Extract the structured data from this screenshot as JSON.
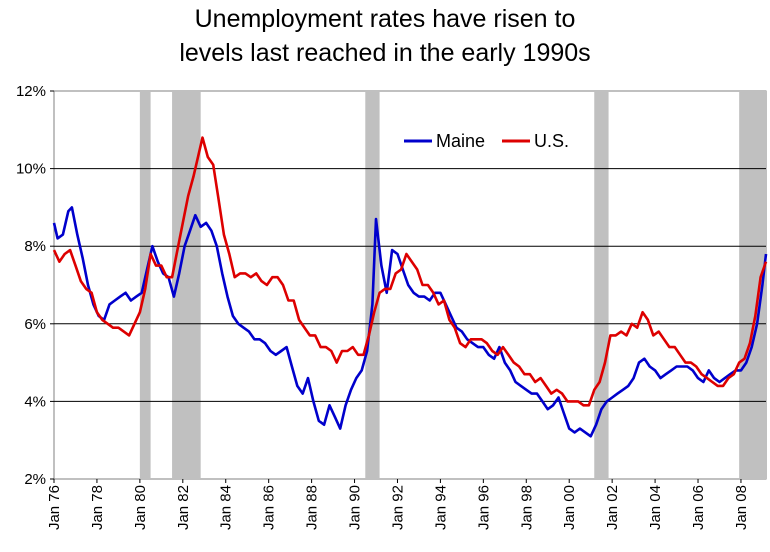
{
  "chart_data": {
    "type": "line",
    "title_lines": [
      "Unemployment rates have risen to",
      "levels last reached in the early 1990s"
    ],
    "xlabel": "",
    "ylabel": "",
    "x_range": [
      "1976-01",
      "2009-03"
    ],
    "ylim": [
      2,
      12
    ],
    "y_ticks": [
      2,
      4,
      6,
      8,
      10,
      12
    ],
    "y_tick_labels": [
      "2%",
      "4%",
      "6%",
      "8%",
      "10%",
      "12%"
    ],
    "x_tick_labels": [
      "Jan 76",
      "Jan 78",
      "Jan 80",
      "Jan 82",
      "Jan 84",
      "Jan 86",
      "Jan 88",
      "Jan 90",
      "Jan 92",
      "Jan 94",
      "Jan 96",
      "Jan 98",
      "Jan 00",
      "Jan 02",
      "Jan 04",
      "Jan 06",
      "Jan 08"
    ],
    "grid": "horizontal",
    "legend_position": "top-center",
    "recessions": [
      {
        "start": "1980-01",
        "end": "1980-07"
      },
      {
        "start": "1981-07",
        "end": "1982-11"
      },
      {
        "start": "1990-07",
        "end": "1991-03"
      },
      {
        "start": "2001-03",
        "end": "2001-11"
      },
      {
        "start": "2007-12",
        "end": "2009-03"
      }
    ],
    "recession_color": "#c0c0c0",
    "series": [
      {
        "name": "Maine",
        "color": "#0000cc",
        "points": [
          [
            "1976-01",
            8.6
          ],
          [
            "1976-03",
            8.2
          ],
          [
            "1976-06",
            8.3
          ],
          [
            "1976-09",
            8.9
          ],
          [
            "1976-11",
            9.0
          ],
          [
            "1977-02",
            8.3
          ],
          [
            "1977-05",
            7.7
          ],
          [
            "1977-08",
            7.0
          ],
          [
            "1977-11",
            6.5
          ],
          [
            "1978-02",
            6.2
          ],
          [
            "1978-05",
            6.1
          ],
          [
            "1978-08",
            6.5
          ],
          [
            "1978-11",
            6.6
          ],
          [
            "1979-02",
            6.7
          ],
          [
            "1979-05",
            6.8
          ],
          [
            "1979-08",
            6.6
          ],
          [
            "1979-11",
            6.7
          ],
          [
            "1980-02",
            6.8
          ],
          [
            "1980-05",
            7.4
          ],
          [
            "1980-08",
            8.0
          ],
          [
            "1980-11",
            7.6
          ],
          [
            "1981-02",
            7.3
          ],
          [
            "1981-05",
            7.2
          ],
          [
            "1981-08",
            6.7
          ],
          [
            "1981-11",
            7.3
          ],
          [
            "1982-02",
            8.0
          ],
          [
            "1982-05",
            8.4
          ],
          [
            "1982-08",
            8.8
          ],
          [
            "1982-11",
            8.5
          ],
          [
            "1983-02",
            8.6
          ],
          [
            "1983-05",
            8.4
          ],
          [
            "1983-08",
            8.0
          ],
          [
            "1983-11",
            7.3
          ],
          [
            "1984-02",
            6.7
          ],
          [
            "1984-05",
            6.2
          ],
          [
            "1984-08",
            6.0
          ],
          [
            "1984-11",
            5.9
          ],
          [
            "1985-02",
            5.8
          ],
          [
            "1985-05",
            5.6
          ],
          [
            "1985-08",
            5.6
          ],
          [
            "1985-11",
            5.5
          ],
          [
            "1986-02",
            5.3
          ],
          [
            "1986-05",
            5.2
          ],
          [
            "1986-08",
            5.3
          ],
          [
            "1986-11",
            5.4
          ],
          [
            "1987-02",
            4.9
          ],
          [
            "1987-05",
            4.4
          ],
          [
            "1987-08",
            4.2
          ],
          [
            "1987-11",
            4.6
          ],
          [
            "1988-02",
            4.0
          ],
          [
            "1988-05",
            3.5
          ],
          [
            "1988-08",
            3.4
          ],
          [
            "1988-11",
            3.9
          ],
          [
            "1989-02",
            3.6
          ],
          [
            "1989-05",
            3.3
          ],
          [
            "1989-08",
            3.9
          ],
          [
            "1989-11",
            4.3
          ],
          [
            "1990-02",
            4.6
          ],
          [
            "1990-05",
            4.8
          ],
          [
            "1990-08",
            5.3
          ],
          [
            "1990-11",
            6.5
          ],
          [
            "1991-01",
            8.7
          ],
          [
            "1991-04",
            7.5
          ],
          [
            "1991-07",
            6.8
          ],
          [
            "1991-10",
            7.9
          ],
          [
            "1992-01",
            7.8
          ],
          [
            "1992-04",
            7.4
          ],
          [
            "1992-07",
            7.0
          ],
          [
            "1992-10",
            6.8
          ],
          [
            "1993-01",
            6.7
          ],
          [
            "1993-04",
            6.7
          ],
          [
            "1993-07",
            6.6
          ],
          [
            "1993-10",
            6.8
          ],
          [
            "1994-01",
            6.8
          ],
          [
            "1994-04",
            6.5
          ],
          [
            "1994-07",
            6.2
          ],
          [
            "1994-10",
            5.9
          ],
          [
            "1995-01",
            5.8
          ],
          [
            "1995-04",
            5.6
          ],
          [
            "1995-07",
            5.5
          ],
          [
            "1995-10",
            5.4
          ],
          [
            "1996-01",
            5.4
          ],
          [
            "1996-04",
            5.2
          ],
          [
            "1996-07",
            5.1
          ],
          [
            "1996-10",
            5.4
          ],
          [
            "1997-01",
            5.0
          ],
          [
            "1997-04",
            4.8
          ],
          [
            "1997-07",
            4.5
          ],
          [
            "1997-10",
            4.4
          ],
          [
            "1998-01",
            4.3
          ],
          [
            "1998-04",
            4.2
          ],
          [
            "1998-07",
            4.2
          ],
          [
            "1998-10",
            4.0
          ],
          [
            "1999-01",
            3.8
          ],
          [
            "1999-04",
            3.9
          ],
          [
            "1999-07",
            4.1
          ],
          [
            "1999-10",
            3.7
          ],
          [
            "2000-01",
            3.3
          ],
          [
            "2000-04",
            3.2
          ],
          [
            "2000-07",
            3.3
          ],
          [
            "2000-10",
            3.2
          ],
          [
            "2001-01",
            3.1
          ],
          [
            "2001-04",
            3.4
          ],
          [
            "2001-07",
            3.8
          ],
          [
            "2001-10",
            4.0
          ],
          [
            "2002-01",
            4.1
          ],
          [
            "2002-04",
            4.2
          ],
          [
            "2002-07",
            4.3
          ],
          [
            "2002-10",
            4.4
          ],
          [
            "2003-01",
            4.6
          ],
          [
            "2003-04",
            5.0
          ],
          [
            "2003-07",
            5.1
          ],
          [
            "2003-10",
            4.9
          ],
          [
            "2004-01",
            4.8
          ],
          [
            "2004-04",
            4.6
          ],
          [
            "2004-07",
            4.7
          ],
          [
            "2004-10",
            4.8
          ],
          [
            "2005-01",
            4.9
          ],
          [
            "2005-04",
            4.9
          ],
          [
            "2005-07",
            4.9
          ],
          [
            "2005-10",
            4.8
          ],
          [
            "2006-01",
            4.6
          ],
          [
            "2006-04",
            4.5
          ],
          [
            "2006-07",
            4.8
          ],
          [
            "2006-10",
            4.6
          ],
          [
            "2007-01",
            4.5
          ],
          [
            "2007-04",
            4.6
          ],
          [
            "2007-07",
            4.7
          ],
          [
            "2007-10",
            4.8
          ],
          [
            "2008-01",
            4.8
          ],
          [
            "2008-04",
            5.0
          ],
          [
            "2008-07",
            5.4
          ],
          [
            "2008-10",
            6.0
          ],
          [
            "2009-01",
            7.0
          ],
          [
            "2009-03",
            7.8
          ]
        ]
      },
      {
        "name": "U.S.",
        "color": "#dd0000",
        "points": [
          [
            "1976-01",
            7.9
          ],
          [
            "1976-04",
            7.6
          ],
          [
            "1976-07",
            7.8
          ],
          [
            "1976-10",
            7.9
          ],
          [
            "1977-01",
            7.5
          ],
          [
            "1977-04",
            7.1
          ],
          [
            "1977-07",
            6.9
          ],
          [
            "1977-10",
            6.8
          ],
          [
            "1978-01",
            6.3
          ],
          [
            "1978-04",
            6.1
          ],
          [
            "1978-07",
            6.0
          ],
          [
            "1978-10",
            5.9
          ],
          [
            "1979-01",
            5.9
          ],
          [
            "1979-04",
            5.8
          ],
          [
            "1979-07",
            5.7
          ],
          [
            "1979-10",
            6.0
          ],
          [
            "1980-01",
            6.3
          ],
          [
            "1980-04",
            6.9
          ],
          [
            "1980-07",
            7.8
          ],
          [
            "1980-10",
            7.5
          ],
          [
            "1981-01",
            7.5
          ],
          [
            "1981-04",
            7.2
          ],
          [
            "1981-07",
            7.2
          ],
          [
            "1981-10",
            7.9
          ],
          [
            "1982-01",
            8.6
          ],
          [
            "1982-04",
            9.3
          ],
          [
            "1982-07",
            9.8
          ],
          [
            "1982-10",
            10.4
          ],
          [
            "1982-12",
            10.8
          ],
          [
            "1983-03",
            10.3
          ],
          [
            "1983-06",
            10.1
          ],
          [
            "1983-09",
            9.2
          ],
          [
            "1983-12",
            8.3
          ],
          [
            "1984-03",
            7.8
          ],
          [
            "1984-06",
            7.2
          ],
          [
            "1984-09",
            7.3
          ],
          [
            "1984-12",
            7.3
          ],
          [
            "1985-03",
            7.2
          ],
          [
            "1985-06",
            7.3
          ],
          [
            "1985-09",
            7.1
          ],
          [
            "1985-12",
            7.0
          ],
          [
            "1986-03",
            7.2
          ],
          [
            "1986-06",
            7.2
          ],
          [
            "1986-09",
            7.0
          ],
          [
            "1986-12",
            6.6
          ],
          [
            "1987-03",
            6.6
          ],
          [
            "1987-06",
            6.1
          ],
          [
            "1987-09",
            5.9
          ],
          [
            "1987-12",
            5.7
          ],
          [
            "1988-03",
            5.7
          ],
          [
            "1988-06",
            5.4
          ],
          [
            "1988-09",
            5.4
          ],
          [
            "1988-12",
            5.3
          ],
          [
            "1989-03",
            5.0
          ],
          [
            "1989-06",
            5.3
          ],
          [
            "1989-09",
            5.3
          ],
          [
            "1989-12",
            5.4
          ],
          [
            "1990-03",
            5.2
          ],
          [
            "1990-06",
            5.2
          ],
          [
            "1990-09",
            5.7
          ],
          [
            "1990-12",
            6.3
          ],
          [
            "1991-03",
            6.8
          ],
          [
            "1991-06",
            6.9
          ],
          [
            "1991-09",
            6.9
          ],
          [
            "1991-12",
            7.3
          ],
          [
            "1992-03",
            7.4
          ],
          [
            "1992-06",
            7.8
          ],
          [
            "1992-09",
            7.6
          ],
          [
            "1992-12",
            7.4
          ],
          [
            "1993-03",
            7.0
          ],
          [
            "1993-06",
            7.0
          ],
          [
            "1993-09",
            6.8
          ],
          [
            "1993-12",
            6.5
          ],
          [
            "1994-03",
            6.6
          ],
          [
            "1994-06",
            6.1
          ],
          [
            "1994-09",
            5.9
          ],
          [
            "1994-12",
            5.5
          ],
          [
            "1995-03",
            5.4
          ],
          [
            "1995-06",
            5.6
          ],
          [
            "1995-09",
            5.6
          ],
          [
            "1995-12",
            5.6
          ],
          [
            "1996-03",
            5.5
          ],
          [
            "1996-06",
            5.3
          ],
          [
            "1996-09",
            5.2
          ],
          [
            "1996-12",
            5.4
          ],
          [
            "1997-03",
            5.2
          ],
          [
            "1997-06",
            5.0
          ],
          [
            "1997-09",
            4.9
          ],
          [
            "1997-12",
            4.7
          ],
          [
            "1998-03",
            4.7
          ],
          [
            "1998-06",
            4.5
          ],
          [
            "1998-09",
            4.6
          ],
          [
            "1998-12",
            4.4
          ],
          [
            "1999-03",
            4.2
          ],
          [
            "1999-06",
            4.3
          ],
          [
            "1999-09",
            4.2
          ],
          [
            "1999-12",
            4.0
          ],
          [
            "2000-03",
            4.0
          ],
          [
            "2000-06",
            4.0
          ],
          [
            "2000-09",
            3.9
          ],
          [
            "2000-12",
            3.9
          ],
          [
            "2001-03",
            4.3
          ],
          [
            "2001-06",
            4.5
          ],
          [
            "2001-09",
            5.0
          ],
          [
            "2001-12",
            5.7
          ],
          [
            "2002-03",
            5.7
          ],
          [
            "2002-06",
            5.8
          ],
          [
            "2002-09",
            5.7
          ],
          [
            "2002-12",
            6.0
          ],
          [
            "2003-03",
            5.9
          ],
          [
            "2003-06",
            6.3
          ],
          [
            "2003-09",
            6.1
          ],
          [
            "2003-12",
            5.7
          ],
          [
            "2004-03",
            5.8
          ],
          [
            "2004-06",
            5.6
          ],
          [
            "2004-09",
            5.4
          ],
          [
            "2004-12",
            5.4
          ],
          [
            "2005-03",
            5.2
          ],
          [
            "2005-06",
            5.0
          ],
          [
            "2005-09",
            5.0
          ],
          [
            "2005-12",
            4.9
          ],
          [
            "2006-03",
            4.7
          ],
          [
            "2006-06",
            4.6
          ],
          [
            "2006-09",
            4.5
          ],
          [
            "2006-12",
            4.4
          ],
          [
            "2007-03",
            4.4
          ],
          [
            "2007-06",
            4.6
          ],
          [
            "2007-09",
            4.7
          ],
          [
            "2007-12",
            5.0
          ],
          [
            "2008-03",
            5.1
          ],
          [
            "2008-06",
            5.5
          ],
          [
            "2008-09",
            6.2
          ],
          [
            "2008-12",
            7.2
          ],
          [
            "2009-03",
            7.6
          ]
        ]
      }
    ]
  }
}
